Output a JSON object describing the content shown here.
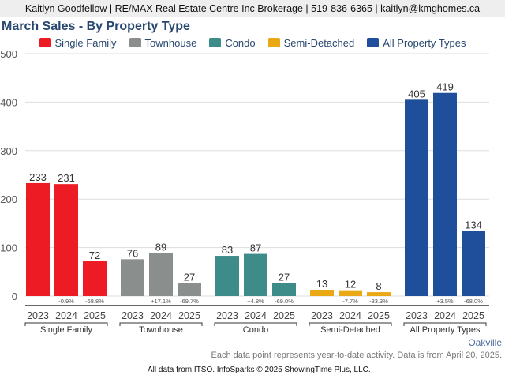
{
  "header": {
    "contact_line": "Kaitlyn Goodfellow | RE/MAX Real Estate Centre Inc Brokerage | 519-836-6365 | kaitlyn@kmghomes.ca"
  },
  "footer": {
    "region": "Oakville",
    "note": "Each data point represents year-to-date activity. Data is from April 20, 2025.",
    "source": "All data from ITSO. InfoSparks © 2025 ShowingTime Plus, LLC."
  },
  "chart_data": {
    "type": "bar",
    "title": "March Sales - By Property Type",
    "xlabel": "",
    "ylabel": "",
    "ylim": [
      0,
      500
    ],
    "yticks": [
      0,
      100,
      200,
      300,
      400,
      500
    ],
    "grid": true,
    "legend_position": "top-center",
    "legend": [
      {
        "name": "Single Family",
        "color": "#ed1c24"
      },
      {
        "name": "Townhouse",
        "color": "#8a8f8e"
      },
      {
        "name": "Condo",
        "color": "#3d8c8a"
      },
      {
        "name": "Semi-Detached",
        "color": "#eaa914"
      },
      {
        "name": "All Property Types",
        "color": "#1f4e9a"
      }
    ],
    "categories": [
      "2023",
      "2024",
      "2025"
    ],
    "groups": [
      {
        "name": "Single Family",
        "color": "#ed1c24",
        "values": [
          233,
          231,
          72
        ],
        "changes": [
          "",
          "-0.9%",
          "-68.8%"
        ]
      },
      {
        "name": "Townhouse",
        "color": "#8a8f8e",
        "values": [
          76,
          89,
          27
        ],
        "changes": [
          "",
          "+17.1%",
          "-69.7%"
        ]
      },
      {
        "name": "Condo",
        "color": "#3d8c8a",
        "values": [
          83,
          87,
          27
        ],
        "changes": [
          "",
          "+4.8%",
          "-69.0%"
        ]
      },
      {
        "name": "Semi-Detached",
        "color": "#eaa914",
        "values": [
          13,
          12,
          8
        ],
        "changes": [
          "",
          "-7.7%",
          "-33.3%"
        ]
      },
      {
        "name": "All Property Types",
        "color": "#1f4e9a",
        "values": [
          405,
          419,
          134
        ],
        "changes": [
          "",
          "+3.5%",
          "-68.0%"
        ]
      }
    ]
  }
}
